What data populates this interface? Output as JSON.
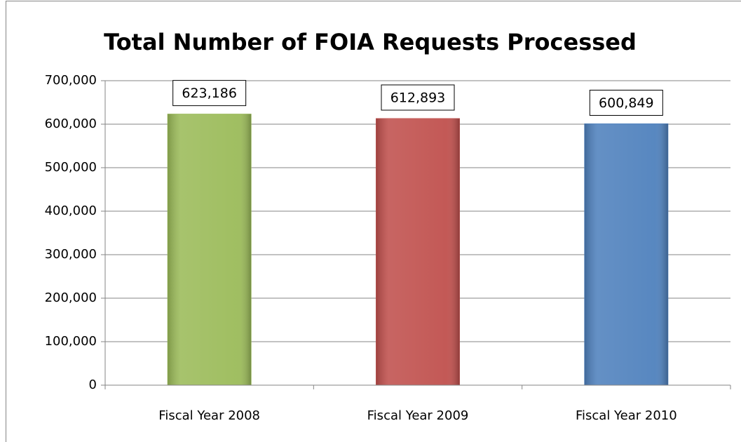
{
  "chart_data": {
    "type": "bar",
    "title": "Total Number of FOIA Requests Processed",
    "categories": [
      "Fiscal Year 2008",
      "Fiscal Year 2009",
      "Fiscal Year 2010"
    ],
    "values": [
      623186,
      612893,
      600849
    ],
    "value_labels": [
      "623,186",
      "612,893",
      "600,849"
    ],
    "colors": [
      "#9bbb59",
      "#c0504d",
      "#4f81bd"
    ],
    "ylim": [
      0,
      700000
    ],
    "yticks": [
      0,
      {
        "value": 100000,
        "label": "100,000"
      },
      {
        "value": 200000,
        "label": "200,000"
      },
      {
        "value": 300000,
        "label": "300,000"
      },
      {
        "value": 400000,
        "label": "400,000"
      },
      {
        "value": 500000,
        "label": "500,000"
      },
      {
        "value": 600000,
        "label": "600,000"
      },
      {
        "value": 700000,
        "label": "700,000"
      }
    ],
    "grid": true
  }
}
